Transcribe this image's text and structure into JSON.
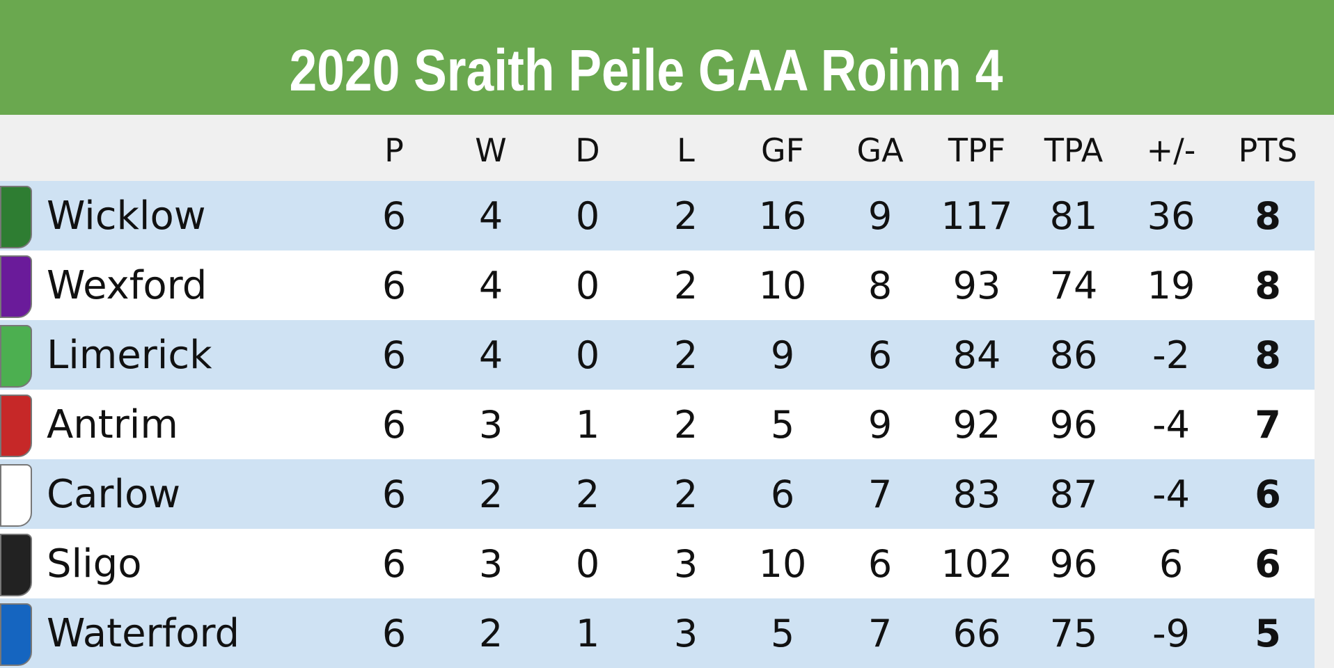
{
  "table": {
    "title": "2020 Sraith Peile GAA Roinn 4",
    "columns": [
      "P",
      "W",
      "D",
      "L",
      "GF",
      "GA",
      "TPF",
      "TPA",
      "+/-",
      "PTS"
    ],
    "rows": [
      [
        "Wicklow",
        6,
        4,
        0,
        2,
        16,
        9,
        117,
        81,
        36,
        8
      ],
      [
        "Wexford",
        6,
        4,
        0,
        2,
        10,
        8,
        93,
        74,
        19,
        8
      ],
      [
        "Limerick",
        6,
        4,
        0,
        2,
        9,
        6,
        84,
        86,
        -2,
        8
      ],
      [
        "Antrim",
        6,
        3,
        1,
        2,
        5,
        9,
        92,
        96,
        -4,
        7
      ],
      [
        "Carlow",
        6,
        2,
        2,
        2,
        6,
        7,
        83,
        87,
        -4,
        6
      ],
      [
        "Sligo",
        6,
        3,
        0,
        3,
        10,
        6,
        102,
        96,
        6,
        6
      ],
      [
        "Waterford",
        6,
        2,
        1,
        3,
        5,
        7,
        66,
        75,
        -9,
        5
      ]
    ]
  }
}
